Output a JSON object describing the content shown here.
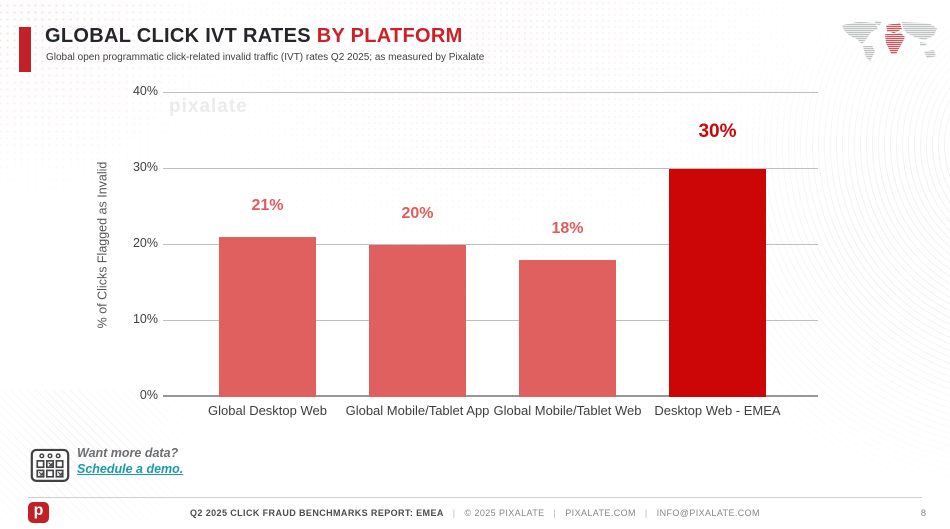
{
  "header": {
    "title_main": "GLOBAL CLICK IVT RATES",
    "title_accent": " BY PLATFORM",
    "subtitle": "Global open programmatic click-related invalid traffic (IVT) rates Q2 2025; as measured by Pixalate"
  },
  "watermark": "pixalate",
  "chart_data": {
    "type": "bar",
    "title": "Global Click IVT Rates by Platform",
    "xlabel": "",
    "ylabel": "% of Clicks Flagged as Invalid",
    "ylim": [
      0,
      40
    ],
    "yticks": [
      "0%",
      "10%",
      "20%",
      "30%",
      "40%"
    ],
    "grid": true,
    "legend": false,
    "categories": [
      "Global Desktop Web",
      "Global Mobile/Tablet App",
      "Global Mobile/Tablet Web",
      "Desktop Web - EMEA"
    ],
    "values": [
      21,
      20,
      18,
      30
    ],
    "data_labels": [
      "21%",
      "20%",
      "18%",
      "30%"
    ],
    "bar_colors": [
      "#e06060",
      "#e06060",
      "#e06060",
      "#cc0606"
    ],
    "label_colors": [
      "#e05c5c",
      "#e05c5c",
      "#e05c5c",
      "#c70808"
    ],
    "emphasis_index": 3
  },
  "cta": {
    "line1": "Want more data?",
    "line2": "Schedule a demo."
  },
  "footer": {
    "report": "Q2 2025 CLICK FRAUD BENCHMARKS REPORT: EMEA",
    "items": [
      "© 2025 PIXALATE",
      "PIXALATE.COM",
      "INFO@PIXALATE.COM"
    ],
    "separator": "|",
    "page": "8"
  },
  "logo_letter": "p",
  "colors": {
    "accent_red": "#c32127",
    "bar_light": "#e06060",
    "bar_dark": "#cc0606",
    "link_teal": "#1b9aaa"
  }
}
